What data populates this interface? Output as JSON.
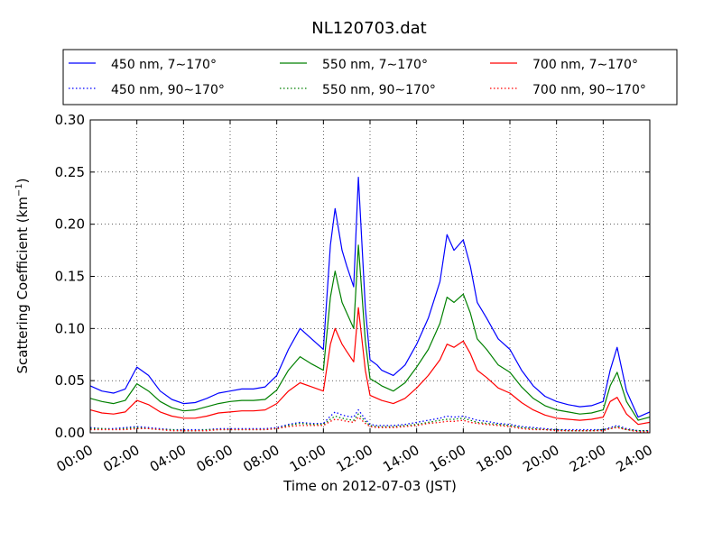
{
  "chart_data": {
    "type": "line",
    "title": "NL120703.dat",
    "xlabel": "Time on 2012-07-03 (JST)",
    "ylabel": "Scattering Coefficient (km",
    "ylabel_sup": "−1",
    "ylabel_suffix": ")",
    "xlim": [
      "00:00",
      "24:00"
    ],
    "ylim": [
      0,
      0.3
    ],
    "grid": true,
    "legend_position": "top",
    "x_ticks": [
      "00:00",
      "02:00",
      "04:00",
      "06:00",
      "08:00",
      "10:00",
      "12:00",
      "14:00",
      "16:00",
      "18:00",
      "20:00",
      "22:00",
      "24:00"
    ],
    "y_ticks": [
      "0.00",
      "0.05",
      "0.10",
      "0.15",
      "0.20",
      "0.25",
      "0.30"
    ],
    "x_hours": [
      0,
      0.5,
      1,
      1.5,
      2,
      2.5,
      3,
      3.5,
      4,
      4.5,
      5,
      5.5,
      6,
      6.5,
      7,
      7.5,
      8,
      8.5,
      9,
      9.5,
      10,
      10.3,
      10.5,
      10.8,
      11,
      11.3,
      11.5,
      11.8,
      12,
      12.3,
      12.5,
      13,
      13.5,
      14,
      14.5,
      15,
      15.3,
      15.6,
      16,
      16.3,
      16.6,
      17,
      17.5,
      18,
      18.5,
      19,
      19.5,
      20,
      20.5,
      21,
      21.5,
      22,
      22.3,
      22.6,
      23,
      23.5,
      24
    ],
    "series": [
      {
        "name": "450 nm, 7∼170°",
        "color": "#0000ff",
        "style": "solid",
        "values": [
          0.045,
          0.04,
          0.038,
          0.042,
          0.063,
          0.055,
          0.04,
          0.032,
          0.028,
          0.029,
          0.033,
          0.038,
          0.04,
          0.042,
          0.042,
          0.044,
          0.055,
          0.08,
          0.1,
          0.09,
          0.08,
          0.18,
          0.215,
          0.175,
          0.16,
          0.14,
          0.245,
          0.12,
          0.07,
          0.065,
          0.06,
          0.055,
          0.065,
          0.085,
          0.11,
          0.145,
          0.19,
          0.175,
          0.185,
          0.16,
          0.125,
          0.11,
          0.09,
          0.08,
          0.06,
          0.045,
          0.035,
          0.03,
          0.027,
          0.025,
          0.026,
          0.03,
          0.06,
          0.082,
          0.04,
          0.015,
          0.02
        ]
      },
      {
        "name": "550 nm, 7∼170°",
        "color": "#008000",
        "style": "solid",
        "values": [
          0.033,
          0.03,
          0.028,
          0.031,
          0.047,
          0.04,
          0.03,
          0.024,
          0.021,
          0.022,
          0.025,
          0.028,
          0.03,
          0.031,
          0.031,
          0.032,
          0.041,
          0.06,
          0.073,
          0.066,
          0.06,
          0.13,
          0.155,
          0.125,
          0.115,
          0.1,
          0.18,
          0.088,
          0.052,
          0.048,
          0.045,
          0.04,
          0.048,
          0.063,
          0.08,
          0.105,
          0.13,
          0.125,
          0.133,
          0.115,
          0.09,
          0.08,
          0.065,
          0.058,
          0.044,
          0.033,
          0.026,
          0.022,
          0.02,
          0.018,
          0.019,
          0.022,
          0.045,
          0.058,
          0.03,
          0.012,
          0.015
        ]
      },
      {
        "name": "700 nm, 7∼170°",
        "color": "#ff0000",
        "style": "solid",
        "values": [
          0.022,
          0.019,
          0.018,
          0.02,
          0.031,
          0.027,
          0.02,
          0.016,
          0.014,
          0.014,
          0.016,
          0.019,
          0.02,
          0.021,
          0.021,
          0.022,
          0.028,
          0.04,
          0.048,
          0.044,
          0.04,
          0.085,
          0.1,
          0.085,
          0.078,
          0.068,
          0.12,
          0.06,
          0.036,
          0.033,
          0.031,
          0.028,
          0.033,
          0.043,
          0.055,
          0.07,
          0.085,
          0.082,
          0.088,
          0.076,
          0.06,
          0.053,
          0.043,
          0.038,
          0.029,
          0.022,
          0.017,
          0.014,
          0.013,
          0.012,
          0.013,
          0.015,
          0.03,
          0.034,
          0.018,
          0.008,
          0.01
        ]
      },
      {
        "name": "450 nm, 90∼170°",
        "color": "#0000ff",
        "style": "dotted",
        "values": [
          0.005,
          0.004,
          0.004,
          0.005,
          0.006,
          0.005,
          0.004,
          0.003,
          0.003,
          0.003,
          0.003,
          0.004,
          0.004,
          0.004,
          0.004,
          0.004,
          0.005,
          0.008,
          0.01,
          0.009,
          0.009,
          0.016,
          0.02,
          0.017,
          0.016,
          0.015,
          0.022,
          0.013,
          0.008,
          0.007,
          0.007,
          0.007,
          0.008,
          0.01,
          0.012,
          0.014,
          0.016,
          0.015,
          0.016,
          0.014,
          0.012,
          0.011,
          0.009,
          0.008,
          0.006,
          0.005,
          0.004,
          0.003,
          0.003,
          0.003,
          0.003,
          0.003,
          0.005,
          0.007,
          0.004,
          0.002,
          0.002
        ]
      },
      {
        "name": "550 nm, 90∼170°",
        "color": "#008000",
        "style": "dotted",
        "values": [
          0.004,
          0.004,
          0.003,
          0.004,
          0.005,
          0.004,
          0.003,
          0.003,
          0.002,
          0.002,
          0.003,
          0.003,
          0.003,
          0.003,
          0.003,
          0.003,
          0.004,
          0.007,
          0.009,
          0.008,
          0.008,
          0.013,
          0.016,
          0.014,
          0.013,
          0.012,
          0.018,
          0.011,
          0.007,
          0.006,
          0.006,
          0.006,
          0.007,
          0.008,
          0.01,
          0.012,
          0.013,
          0.013,
          0.014,
          0.012,
          0.01,
          0.009,
          0.008,
          0.007,
          0.005,
          0.004,
          0.003,
          0.003,
          0.002,
          0.002,
          0.002,
          0.003,
          0.004,
          0.006,
          0.003,
          0.002,
          0.002
        ]
      },
      {
        "name": "700 nm, 90∼170°",
        "color": "#ff0000",
        "style": "dotted",
        "values": [
          0.003,
          0.003,
          0.003,
          0.003,
          0.004,
          0.004,
          0.003,
          0.002,
          0.002,
          0.002,
          0.002,
          0.003,
          0.003,
          0.003,
          0.003,
          0.003,
          0.004,
          0.006,
          0.007,
          0.007,
          0.007,
          0.011,
          0.013,
          0.012,
          0.011,
          0.01,
          0.015,
          0.009,
          0.006,
          0.005,
          0.005,
          0.005,
          0.006,
          0.007,
          0.009,
          0.01,
          0.011,
          0.011,
          0.012,
          0.01,
          0.009,
          0.008,
          0.007,
          0.006,
          0.004,
          0.003,
          0.003,
          0.002,
          0.002,
          0.002,
          0.002,
          0.002,
          0.004,
          0.005,
          0.003,
          0.001,
          0.001
        ]
      }
    ]
  }
}
